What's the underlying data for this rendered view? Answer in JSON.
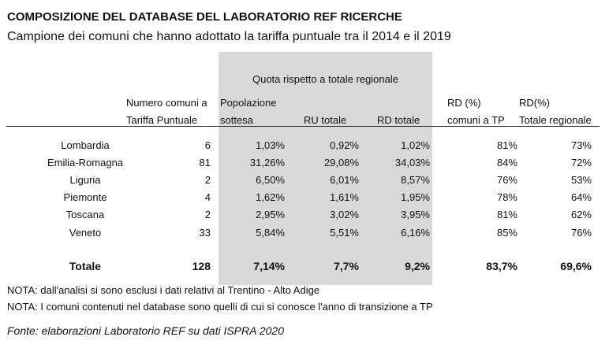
{
  "header": {
    "title": "COMPOSIZIONE DEL DATABASE DEL LABORATORIO REF RICERCHE",
    "subtitle": "Campione dei comuni che hanno adottato la tariffa puntuale tra il 2014 e il 2019"
  },
  "table": {
    "group_header": "Quota rispetto a  totale regionale",
    "columns": [
      [
        "Numero comuni a",
        "Tariffa Puntuale"
      ],
      [
        "Popolazione",
        "sottesa"
      ],
      [
        "RU totale"
      ],
      [
        "RD totale"
      ],
      [
        "RD (%)",
        "comuni a TP"
      ],
      [
        "RD(%)",
        "Totale regionale"
      ]
    ],
    "rows": [
      [
        "Lombardia",
        "6",
        "1,03%",
        "0,92%",
        "1,02%",
        "81%",
        "73%"
      ],
      [
        "Emilia-Romagna",
        "81",
        "31,26%",
        "29,08%",
        "34,03%",
        "84%",
        "72%"
      ],
      [
        "Liguria",
        "2",
        "6,50%",
        "6,01%",
        "8,57%",
        "76%",
        "53%"
      ],
      [
        "Piemonte",
        "4",
        "1,62%",
        "1,61%",
        "1,95%",
        "78%",
        "64%"
      ],
      [
        "Toscana",
        "2",
        "2,95%",
        "3,02%",
        "3,95%",
        "81%",
        "62%"
      ],
      [
        "Veneto",
        "33",
        "5,84%",
        "5,51%",
        "6,16%",
        "85%",
        "76%"
      ]
    ],
    "total": [
      "Totale",
      "128",
      "7,14%",
      "7,7%",
      "9,2%",
      "83,7%",
      "69,6%"
    ]
  },
  "notes": [
    "NOTA: dall'analisi si sono esclusi i dati relativi al Trentino - Alto Adige",
    "NOTA: I comuni contenuti nel database sono quelli di cui si conosce l'anno di transizione a TP"
  ],
  "source": "Fonte: elaborazioni Laboratorio REF su dati ISPRA 2020"
}
